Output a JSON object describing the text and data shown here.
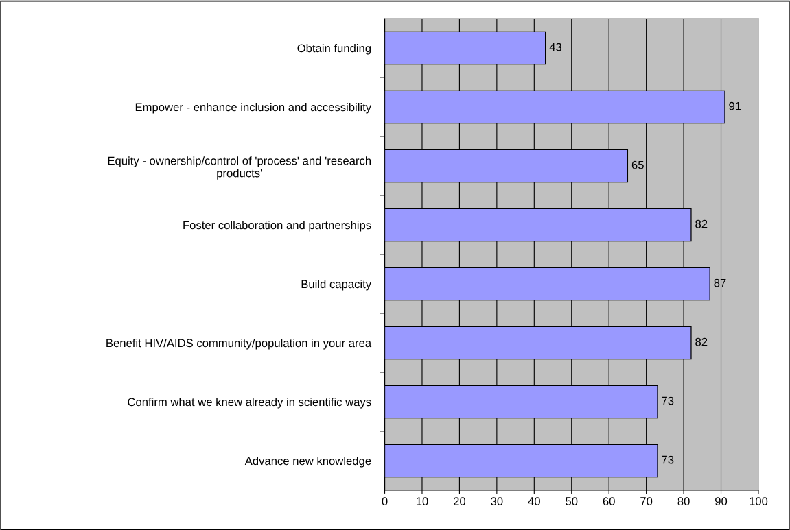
{
  "chart_data": {
    "type": "bar",
    "orientation": "horizontal",
    "categories": [
      "Obtain funding",
      "Empower - enhance inclusion and accessibility",
      "Equity - ownership/control of 'process' and 'research\nproducts'",
      "Foster collaboration and partnerships",
      "Build capacity",
      "Benefit HIV/AIDS community/population in your area",
      "Confirm what we knew already in scientific ways",
      "Advance new knowledge"
    ],
    "values": [
      43,
      91,
      65,
      82,
      87,
      82,
      73,
      73
    ],
    "color": "#9999ff",
    "xlim": [
      0,
      100
    ],
    "xticks": [
      0,
      10,
      20,
      30,
      40,
      50,
      60,
      70,
      80,
      90,
      100
    ],
    "grid": "x",
    "data_labels": true
  }
}
